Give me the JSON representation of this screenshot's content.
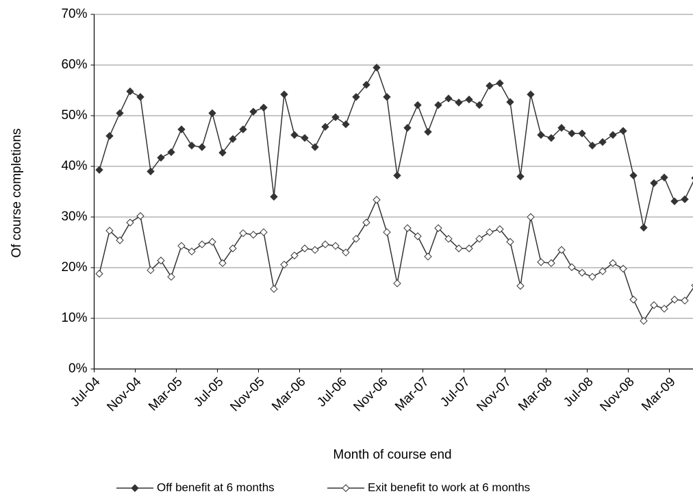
{
  "chart_data": {
    "type": "line",
    "x_label": "Month of course end",
    "y_label": "Of course completions",
    "categories": [
      "Jul-04",
      null,
      null,
      null,
      "Nov-04",
      null,
      null,
      null,
      "Mar-05",
      null,
      null,
      null,
      "Jul-05",
      null,
      null,
      null,
      "Nov-05",
      null,
      null,
      null,
      "Mar-06",
      null,
      null,
      null,
      "Jul-06",
      null,
      null,
      null,
      "Nov-06",
      null,
      null,
      null,
      "Mar-07",
      null,
      null,
      null,
      "Jul-07",
      null,
      null,
      null,
      "Nov-07",
      null,
      null,
      null,
      "Mar-08",
      null,
      null,
      null,
      "Jul-08",
      null,
      null,
      null,
      "Nov-08",
      null,
      null,
      null,
      "Mar-09",
      null,
      null
    ],
    "series": [
      {
        "name": "Off benefit at 6 months",
        "color": "#333333",
        "marker_fill": "#333333",
        "values": [
          39.3,
          46,
          50.5,
          54.8,
          53.7,
          39,
          41.7,
          42.8,
          47.3,
          44.1,
          43.8,
          50.5,
          42.7,
          45.4,
          47.3,
          50.8,
          51.6,
          34,
          54.2,
          46.2,
          45.6,
          43.8,
          47.8,
          49.7,
          48.3,
          53.7,
          56.1,
          59.5,
          53.7,
          38.2,
          47.6,
          52.1,
          46.8,
          52.1,
          53.4,
          52.6,
          53.2,
          52.1,
          55.9,
          56.4,
          52.7,
          38,
          54.2,
          46.2,
          45.6,
          47.6,
          46.5,
          46.5,
          44.1,
          44.8,
          46.2,
          47,
          38.2,
          27.9,
          36.7,
          37.8,
          33.1,
          33.5,
          37.7
        ]
      },
      {
        "name": "Exit benefit to work at 6 months",
        "color": "#333333",
        "marker_fill": "#ffffff",
        "values": [
          18.8,
          27.3,
          25.4,
          28.9,
          30.2,
          19.5,
          21.4,
          18.2,
          24.3,
          23.2,
          24.6,
          25.1,
          20.9,
          23.8,
          26.8,
          26.5,
          27,
          15.8,
          20.6,
          22.4,
          23.8,
          23.5,
          24.6,
          24.3,
          23,
          25.7,
          28.9,
          33.4,
          27,
          16.9,
          27.8,
          26.2,
          22.2,
          27.8,
          25.7,
          23.8,
          23.8,
          25.7,
          27,
          27.6,
          25.1,
          16.4,
          30,
          21.1,
          20.9,
          23.5,
          20.1,
          19,
          18.2,
          19.3,
          20.9,
          19.8,
          13.7,
          9.5,
          12.6,
          11.9,
          13.7,
          13.5,
          16.5
        ]
      }
    ],
    "ylim": [
      0,
      70
    ],
    "yticks": [
      {
        "value": 0,
        "label": "0%"
      },
      {
        "value": 10,
        "label": "10%"
      },
      {
        "value": 20,
        "label": "20%"
      },
      {
        "value": 30,
        "label": "30%"
      },
      {
        "value": 40,
        "label": "40%"
      },
      {
        "value": 50,
        "label": "50%"
      },
      {
        "value": 60,
        "label": "60%"
      },
      {
        "value": 70,
        "label": "70%"
      }
    ],
    "grid": true
  }
}
